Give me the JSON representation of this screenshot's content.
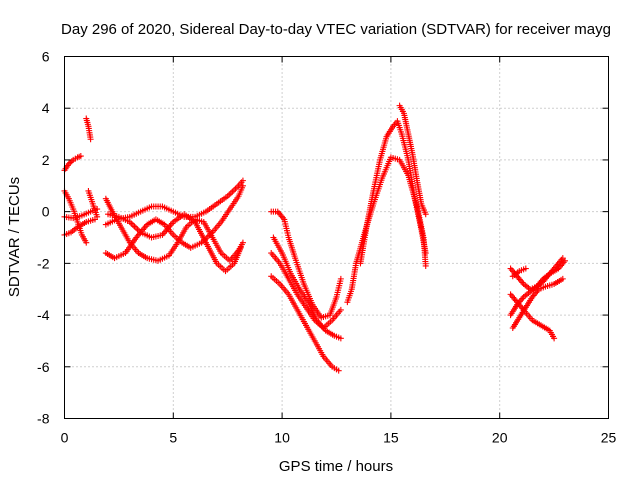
{
  "chart_data": {
    "type": "scatter",
    "title": "Day 296 of 2020, Sidereal Day-to-day VTEC variation (SDTVAR) for receiver mayg",
    "xlabel": "GPS time / hours",
    "ylabel": "SDTVAR / TECUs",
    "xlim": [
      0,
      25
    ],
    "ylim": [
      -8,
      6
    ],
    "xticks": [
      0,
      5,
      10,
      15,
      20,
      25
    ],
    "yticks": [
      -8,
      -6,
      -4,
      -2,
      0,
      2,
      4,
      6
    ],
    "xtick_labels": [
      "0",
      "5",
      "10",
      "15",
      "20",
      "25"
    ],
    "ytick_labels": [
      "-8",
      "-6",
      "-4",
      "-2",
      "0",
      "2",
      "4",
      "6"
    ],
    "grid": true,
    "marker": "+",
    "series": [
      {
        "name": "SDTVAR",
        "color": "#ff0000",
        "tracks": [
          [
            [
              0.0,
              1.6
            ],
            [
              0.2,
              1.85
            ],
            [
              0.4,
              2.0
            ],
            [
              0.6,
              2.1
            ],
            [
              0.75,
              2.15
            ]
          ],
          [
            [
              0.0,
              0.8
            ],
            [
              0.2,
              0.5
            ],
            [
              0.4,
              0.1
            ],
            [
              0.6,
              -0.4
            ],
            [
              0.8,
              -0.9
            ],
            [
              1.0,
              -1.2
            ]
          ],
          [
            [
              0.0,
              -0.9
            ],
            [
              0.3,
              -0.8
            ],
            [
              0.6,
              -0.6
            ],
            [
              1.0,
              -0.4
            ],
            [
              1.4,
              -0.3
            ]
          ],
          [
            [
              0.0,
              -0.2
            ],
            [
              0.4,
              -0.25
            ],
            [
              0.8,
              -0.15
            ],
            [
              1.2,
              0.0
            ],
            [
              1.5,
              0.1
            ]
          ],
          [
            [
              1.0,
              3.6
            ],
            [
              1.1,
              3.3
            ],
            [
              1.2,
              2.8
            ]
          ],
          [
            [
              1.1,
              0.8
            ],
            [
              1.3,
              0.3
            ],
            [
              1.5,
              -0.2
            ]
          ],
          [
            [
              1.9,
              0.5
            ],
            [
              2.2,
              0.0
            ],
            [
              2.6,
              -0.6
            ],
            [
              3.0,
              -1.2
            ],
            [
              3.4,
              -1.6
            ],
            [
              3.8,
              -1.8
            ],
            [
              4.3,
              -1.9
            ],
            [
              4.8,
              -1.7
            ],
            [
              5.2,
              -1.2
            ],
            [
              5.6,
              -0.6
            ],
            [
              6.0,
              -0.3
            ],
            [
              6.4,
              -0.4
            ],
            [
              6.8,
              -1.0
            ],
            [
              7.2,
              -1.6
            ],
            [
              7.6,
              -1.9
            ],
            [
              8.0,
              -1.5
            ],
            [
              8.2,
              -1.2
            ]
          ],
          [
            [
              1.9,
              -1.6
            ],
            [
              2.3,
              -1.8
            ],
            [
              2.8,
              -1.6
            ],
            [
              3.3,
              -1.0
            ],
            [
              3.8,
              -0.5
            ],
            [
              4.2,
              -0.3
            ],
            [
              4.6,
              -0.5
            ],
            [
              5.0,
              -0.9
            ],
            [
              5.4,
              -1.2
            ],
            [
              5.8,
              -1.4
            ],
            [
              6.3,
              -1.2
            ],
            [
              6.8,
              -0.8
            ],
            [
              7.2,
              -0.4
            ],
            [
              7.6,
              0.1
            ],
            [
              8.0,
              0.6
            ],
            [
              8.2,
              1.0
            ]
          ],
          [
            [
              1.9,
              -0.5
            ],
            [
              2.4,
              -0.3
            ],
            [
              3.0,
              -0.2
            ],
            [
              3.5,
              0.0
            ],
            [
              4.0,
              0.2
            ],
            [
              4.5,
              0.2
            ],
            [
              5.0,
              0.0
            ],
            [
              5.5,
              -0.2
            ],
            [
              6.0,
              -0.2
            ],
            [
              6.5,
              0.0
            ],
            [
              7.0,
              0.3
            ],
            [
              7.5,
              0.6
            ],
            [
              8.0,
              1.0
            ],
            [
              8.2,
              1.2
            ]
          ],
          [
            [
              2.0,
              -0.1
            ],
            [
              2.5,
              -0.2
            ],
            [
              3.0,
              -0.4
            ],
            [
              3.5,
              -0.8
            ],
            [
              4.0,
              -1.0
            ],
            [
              4.5,
              -0.9
            ],
            [
              5.0,
              -0.4
            ],
            [
              5.5,
              -0.1
            ],
            [
              6.0,
              -0.4
            ],
            [
              6.5,
              -1.2
            ],
            [
              7.0,
              -2.0
            ],
            [
              7.4,
              -2.3
            ],
            [
              7.8,
              -2.0
            ],
            [
              8.1,
              -1.4
            ]
          ],
          [
            [
              9.5,
              0.0
            ],
            [
              9.8,
              0.0
            ],
            [
              10.1,
              -0.3
            ],
            [
              10.3,
              -1.0
            ],
            [
              10.6,
              -1.8
            ],
            [
              11.0,
              -2.8
            ],
            [
              11.4,
              -3.6
            ],
            [
              11.8,
              -4.1
            ],
            [
              12.2,
              -4.0
            ],
            [
              12.5,
              -3.3
            ],
            [
              12.7,
              -2.6
            ]
          ],
          [
            [
              9.5,
              -1.6
            ],
            [
              9.9,
              -2.0
            ],
            [
              10.3,
              -2.6
            ],
            [
              10.7,
              -3.2
            ],
            [
              11.1,
              -3.7
            ],
            [
              11.5,
              -4.2
            ],
            [
              11.9,
              -4.5
            ],
            [
              12.3,
              -4.2
            ],
            [
              12.7,
              -3.8
            ]
          ],
          [
            [
              9.5,
              -2.5
            ],
            [
              9.9,
              -2.8
            ],
            [
              10.3,
              -3.2
            ],
            [
              10.7,
              -3.8
            ],
            [
              11.1,
              -4.4
            ],
            [
              11.5,
              -5.0
            ],
            [
              11.9,
              -5.6
            ],
            [
              12.3,
              -6.0
            ],
            [
              12.6,
              -6.15
            ]
          ],
          [
            [
              9.6,
              -1.0
            ],
            [
              10.0,
              -1.6
            ],
            [
              10.4,
              -2.4
            ],
            [
              10.8,
              -3.0
            ],
            [
              11.2,
              -3.5
            ],
            [
              11.6,
              -4.2
            ],
            [
              12.0,
              -4.6
            ],
            [
              12.4,
              -4.8
            ],
            [
              12.7,
              -4.9
            ]
          ],
          [
            [
              13.0,
              -3.5
            ],
            [
              13.2,
              -3.0
            ],
            [
              13.4,
              -2.0
            ],
            [
              13.8,
              -0.8
            ],
            [
              14.2,
              0.3
            ],
            [
              14.6,
              1.3
            ],
            [
              15.0,
              2.1
            ],
            [
              15.4,
              2.0
            ],
            [
              15.8,
              1.4
            ],
            [
              16.2,
              0.2
            ],
            [
              16.5,
              -1.0
            ],
            [
              16.6,
              -2.1
            ]
          ],
          [
            [
              13.6,
              -2.0
            ],
            [
              13.9,
              -0.5
            ],
            [
              14.2,
              0.8
            ],
            [
              14.5,
              2.0
            ],
            [
              14.8,
              2.9
            ],
            [
              15.1,
              3.3
            ],
            [
              15.3,
              3.5
            ],
            [
              15.5,
              3.0
            ],
            [
              15.8,
              2.0
            ],
            [
              16.1,
              0.5
            ],
            [
              16.4,
              -0.7
            ],
            [
              16.6,
              -1.6
            ]
          ],
          [
            [
              15.4,
              4.1
            ],
            [
              15.6,
              3.8
            ],
            [
              15.8,
              3.0
            ],
            [
              16.0,
              2.2
            ],
            [
              16.2,
              1.2
            ],
            [
              16.4,
              0.3
            ],
            [
              16.6,
              -0.1
            ]
          ],
          [
            [
              20.5,
              -3.2
            ],
            [
              20.8,
              -3.5
            ],
            [
              21.1,
              -3.8
            ],
            [
              21.5,
              -4.2
            ],
            [
              21.9,
              -4.4
            ],
            [
              22.3,
              -4.6
            ],
            [
              22.5,
              -4.9
            ]
          ],
          [
            [
              20.5,
              -2.2
            ],
            [
              20.8,
              -2.5
            ],
            [
              21.1,
              -2.8
            ],
            [
              21.4,
              -3.0
            ],
            [
              21.7,
              -2.9
            ],
            [
              22.0,
              -2.7
            ],
            [
              22.3,
              -2.4
            ],
            [
              22.6,
              -2.1
            ],
            [
              22.9,
              -1.8
            ]
          ],
          [
            [
              20.5,
              -4.0
            ],
            [
              20.8,
              -3.6
            ],
            [
              21.1,
              -3.3
            ],
            [
              21.4,
              -3.1
            ],
            [
              21.7,
              -2.9
            ],
            [
              22.0,
              -2.6
            ],
            [
              22.3,
              -2.4
            ],
            [
              22.7,
              -2.2
            ],
            [
              23.0,
              -1.9
            ]
          ],
          [
            [
              20.6,
              -4.5
            ],
            [
              20.9,
              -4.1
            ],
            [
              21.2,
              -3.7
            ],
            [
              21.5,
              -3.3
            ],
            [
              21.8,
              -3.0
            ],
            [
              22.1,
              -2.9
            ],
            [
              22.5,
              -2.8
            ],
            [
              22.9,
              -2.6
            ]
          ],
          [
            [
              20.6,
              -2.5
            ],
            [
              20.9,
              -2.3
            ],
            [
              21.2,
              -2.2
            ]
          ]
        ]
      }
    ]
  }
}
